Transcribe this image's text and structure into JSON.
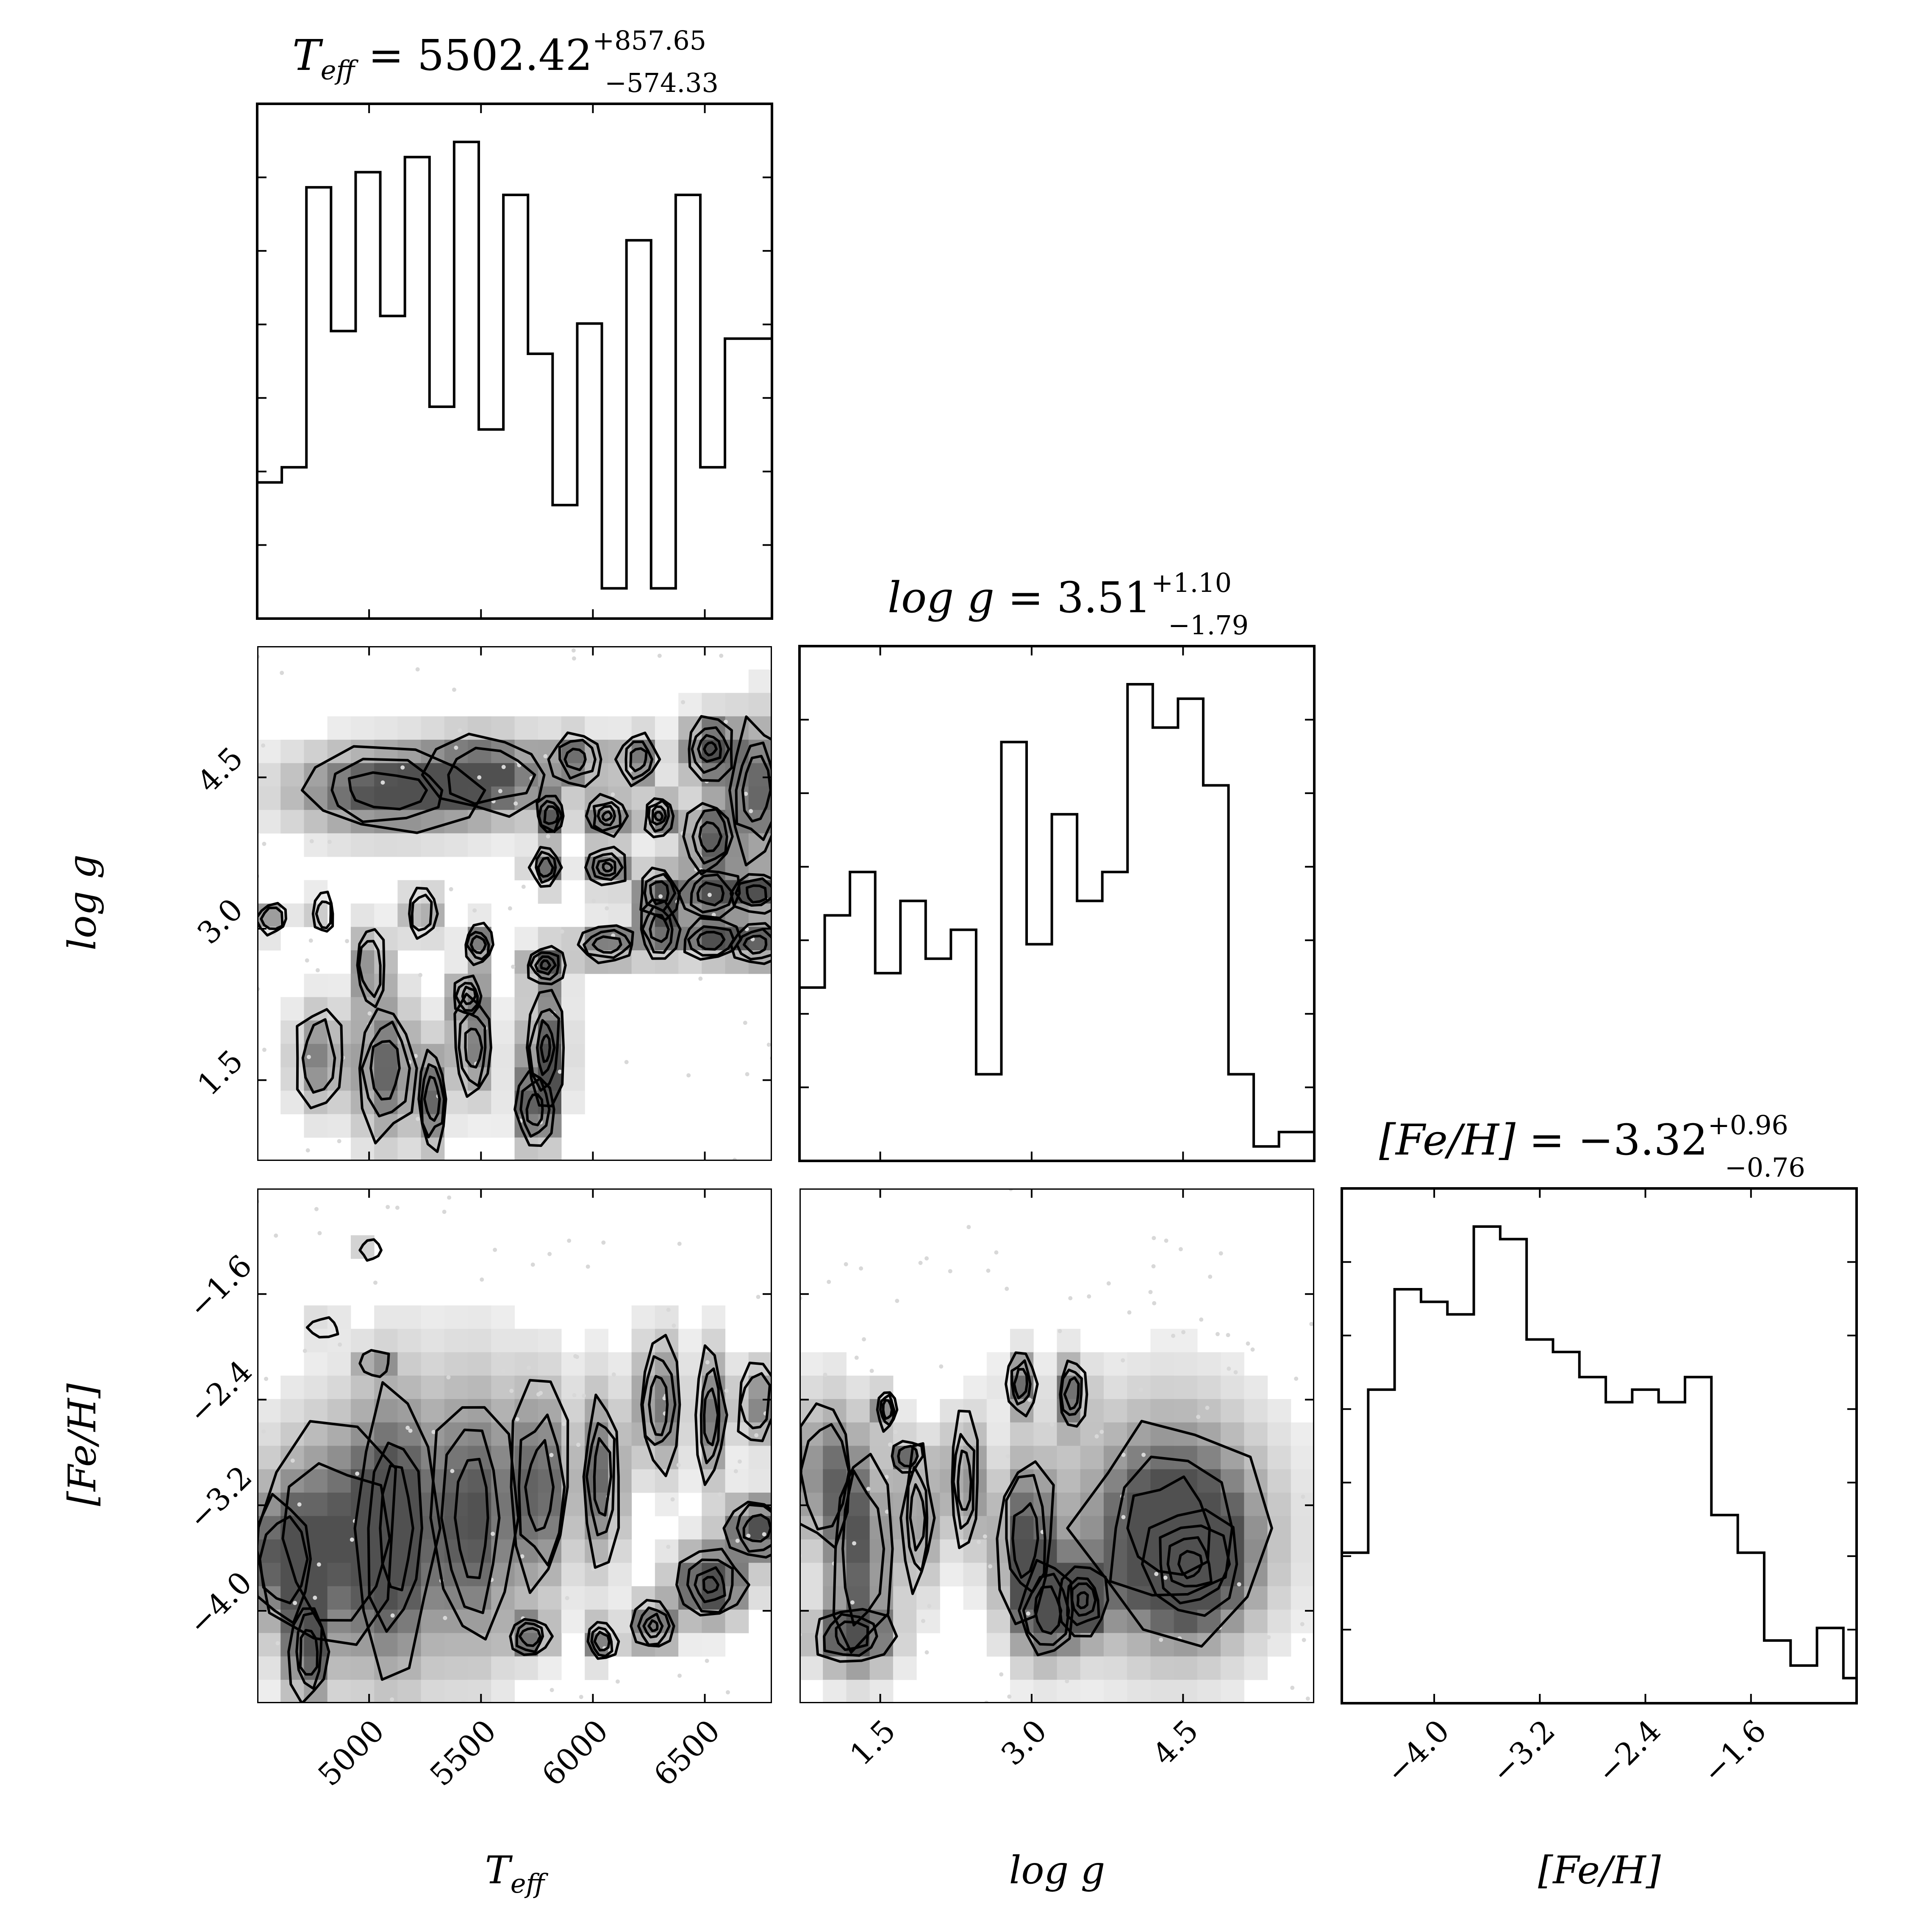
{
  "chart_data": [
    {
      "type": "histogram",
      "panel": "Teff marginal",
      "title": {
        "name": "T_eff",
        "value": "5502.42",
        "plus": "+857.65",
        "minus": "−574.33"
      },
      "x_range": [
        4500,
        6800
      ],
      "bins_edges": [
        4500,
        4610,
        4720,
        4830,
        4940,
        5050,
        5160,
        5270,
        5380,
        5490,
        5600,
        5710,
        5820,
        5930,
        6040,
        6150,
        6260,
        6370,
        6480,
        6590,
        6700,
        6800
      ],
      "counts": [
        18,
        20,
        57,
        38,
        59,
        40,
        61,
        28,
        63,
        25,
        56,
        35,
        15,
        39,
        4,
        50,
        4,
        56,
        20,
        37,
        37
      ]
    },
    {
      "type": "histogram",
      "panel": "log g marginal",
      "title": {
        "name": "log g",
        "value": "3.51",
        "plus": "+1.10",
        "minus": "−1.79"
      },
      "x_range": [
        0.7,
        5.8
      ],
      "bins_edges": [
        0.7,
        0.95,
        1.2,
        1.45,
        1.7,
        1.95,
        2.2,
        2.45,
        2.7,
        2.95,
        3.2,
        3.45,
        3.7,
        3.95,
        4.2,
        4.45,
        4.7,
        4.95,
        5.2,
        5.45,
        5.8
      ],
      "counts": [
        12,
        17,
        20,
        13,
        18,
        14,
        16,
        6,
        29,
        15,
        24,
        18,
        20,
        33,
        30,
        32,
        26,
        6,
        1,
        2
      ]
    },
    {
      "type": "histogram",
      "panel": "[Fe/H] marginal",
      "title": {
        "name": "[Fe/H]",
        "value": "−3.32",
        "plus": "+0.96",
        "minus": "−0.76"
      },
      "x_range": [
        -4.7,
        -0.8
      ],
      "bins_edges": [
        -4.7,
        -4.5,
        -4.3,
        -4.1,
        -3.9,
        -3.7,
        -3.5,
        -3.3,
        -3.1,
        -2.9,
        -2.7,
        -2.5,
        -2.3,
        -2.1,
        -1.9,
        -1.7,
        -1.5,
        -1.3,
        -1.1,
        -0.9,
        -0.8
      ],
      "counts": [
        12,
        25,
        33,
        32,
        31,
        38,
        37,
        29,
        28,
        26,
        24,
        25,
        24,
        26,
        15,
        12,
        5,
        3,
        6,
        2
      ]
    },
    {
      "type": "contour",
      "panel": "log g vs Teff",
      "x_range": [
        4500,
        6800
      ],
      "y_range": [
        0.7,
        5.8
      ]
    },
    {
      "type": "contour",
      "panel": "[Fe/H] vs Teff",
      "x_range": [
        4500,
        6800
      ],
      "y_range": [
        -4.7,
        -0.8
      ]
    },
    {
      "type": "contour",
      "panel": "[Fe/H] vs log g",
      "x_range": [
        0.7,
        5.8
      ],
      "y_range": [
        -4.7,
        -0.8
      ]
    }
  ],
  "axes": {
    "teff": {
      "label": "T_eff",
      "ticks": [
        5000,
        5500,
        6000,
        6500
      ],
      "tick_labels": [
        "5000",
        "5500",
        "6000",
        "6500"
      ]
    },
    "logg": {
      "label": "log g",
      "ticks": [
        1.5,
        3.0,
        4.5
      ],
      "tick_labels": [
        "1.5",
        "3.0",
        "4.5"
      ]
    },
    "feh": {
      "label": "[Fe/H]",
      "ticks": [
        -4.0,
        -3.2,
        -2.4,
        -1.6
      ],
      "tick_labels": [
        "−4.0",
        "−3.2",
        "−2.4",
        "−1.6"
      ]
    }
  },
  "labels": {
    "teff_x": "T",
    "teff_x_sub": "eff",
    "logg_x": "log g",
    "feh_x": "[Fe/H]",
    "logg_y": "log g",
    "feh_y": "[Fe/H]",
    "title1_prefix": "T",
    "title1_sub": "eff",
    "title1_eq": " = 5502.42",
    "title2_prefix": "log g",
    "title2_eq": " = 3.51",
    "title3_prefix": "[Fe/H]",
    "title3_eq": " = −3.32"
  }
}
